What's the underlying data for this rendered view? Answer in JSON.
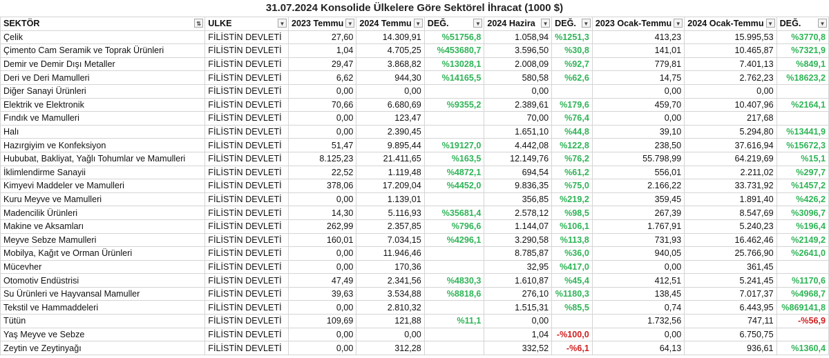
{
  "title": "31.07.2024 Konsolide Ülkelere Göre Sektörel İhracat  (1000 $)",
  "headers": [
    "SEKTÖR",
    "ULKE",
    "2023 Temmu",
    "2024 Temmu",
    "DEĞ.",
    "2024 Hazira",
    "DEĞ.",
    "2023 Ocak-Temmu",
    "2024 Ocak-Temmu",
    "DEĞ."
  ],
  "header_icons": [
    "sort-filter-icon",
    "dropdown-icon",
    "dropdown-icon",
    "dropdown-icon",
    "dropdown-icon",
    "dropdown-icon",
    "dropdown-icon",
    "dropdown-icon",
    "dropdown-icon",
    "dropdown-icon"
  ],
  "colors": {
    "positive": "#2fb457",
    "negative": "#d11f1f"
  },
  "rows": [
    [
      "Çelik",
      "FİLİSTİN DEVLETİ",
      "27,60",
      "14.309,91",
      "%51756,8",
      "1.058,94",
      "%1251,3",
      "413,23",
      "15.995,53",
      "%3770,8"
    ],
    [
      "Çimento Cam Seramik ve Toprak Ürünleri",
      "FİLİSTİN DEVLETİ",
      "1,04",
      "4.705,25",
      "%453680,7",
      "3.596,50",
      "%30,8",
      "141,01",
      "10.465,87",
      "%7321,9"
    ],
    [
      "Demir ve Demir Dışı Metaller",
      "FİLİSTİN DEVLETİ",
      "29,47",
      "3.868,82",
      "%13028,1",
      "2.008,09",
      "%92,7",
      "779,81",
      "7.401,13",
      "%849,1"
    ],
    [
      "Deri ve Deri Mamulleri",
      "FİLİSTİN DEVLETİ",
      "6,62",
      "944,30",
      "%14165,5",
      "580,58",
      "%62,6",
      "14,75",
      "2.762,23",
      "%18623,2"
    ],
    [
      "Diğer Sanayi Ürünleri",
      "FİLİSTİN DEVLETİ",
      "0,00",
      "0,00",
      "",
      "0,00",
      "",
      "0,00",
      "0,00",
      ""
    ],
    [
      "Elektrik ve Elektronik",
      "FİLİSTİN DEVLETİ",
      "70,66",
      "6.680,69",
      "%9355,2",
      "2.389,61",
      "%179,6",
      "459,70",
      "10.407,96",
      "%2164,1"
    ],
    [
      "Fındık ve Mamulleri",
      "FİLİSTİN DEVLETİ",
      "0,00",
      "123,47",
      "",
      "70,00",
      "%76,4",
      "0,00",
      "217,68",
      ""
    ],
    [
      "Halı",
      "FİLİSTİN DEVLETİ",
      "0,00",
      "2.390,45",
      "",
      "1.651,10",
      "%44,8",
      "39,10",
      "5.294,80",
      "%13441,9"
    ],
    [
      "Hazırgiyim ve Konfeksiyon",
      "FİLİSTİN DEVLETİ",
      "51,47",
      "9.895,44",
      "%19127,0",
      "4.442,08",
      "%122,8",
      "238,50",
      "37.616,94",
      "%15672,3"
    ],
    [
      "Hububat, Bakliyat, Yağlı Tohumlar ve Mamulleri",
      "FİLİSTİN DEVLETİ",
      "8.125,23",
      "21.411,65",
      "%163,5",
      "12.149,76",
      "%76,2",
      "55.798,99",
      "64.219,69",
      "%15,1"
    ],
    [
      "İklimlendirme Sanayii",
      "FİLİSTİN DEVLETİ",
      "22,52",
      "1.119,48",
      "%4872,1",
      "694,54",
      "%61,2",
      "556,01",
      "2.211,02",
      "%297,7"
    ],
    [
      "Kimyevi Maddeler ve Mamulleri",
      "FİLİSTİN DEVLETİ",
      "378,06",
      "17.209,04",
      "%4452,0",
      "9.836,35",
      "%75,0",
      "2.166,22",
      "33.731,92",
      "%1457,2"
    ],
    [
      "Kuru Meyve ve Mamulleri",
      "FİLİSTİN DEVLETİ",
      "0,00",
      "1.139,01",
      "",
      "356,85",
      "%219,2",
      "359,45",
      "1.891,40",
      "%426,2"
    ],
    [
      "Madencilik Ürünleri",
      "FİLİSTİN DEVLETİ",
      "14,30",
      "5.116,93",
      "%35681,4",
      "2.578,12",
      "%98,5",
      "267,39",
      "8.547,69",
      "%3096,7"
    ],
    [
      "Makine ve Aksamları",
      "FİLİSTİN DEVLETİ",
      "262,99",
      "2.357,85",
      "%796,6",
      "1.144,07",
      "%106,1",
      "1.767,91",
      "5.240,23",
      "%196,4"
    ],
    [
      "Meyve Sebze Mamulleri",
      "FİLİSTİN DEVLETİ",
      "160,01",
      "7.034,15",
      "%4296,1",
      "3.290,58",
      "%113,8",
      "731,93",
      "16.462,46",
      "%2149,2"
    ],
    [
      "Mobilya, Kağıt ve Orman Ürünleri",
      "FİLİSTİN DEVLETİ",
      "0,00",
      "11.946,46",
      "",
      "8.785,87",
      "%36,0",
      "940,05",
      "25.766,90",
      "%2641,0"
    ],
    [
      "Mücevher",
      "FİLİSTİN DEVLETİ",
      "0,00",
      "170,36",
      "",
      "32,95",
      "%417,0",
      "0,00",
      "361,45",
      ""
    ],
    [
      "Otomotiv Endüstrisi",
      "FİLİSTİN DEVLETİ",
      "47,49",
      "2.341,56",
      "%4830,3",
      "1.610,87",
      "%45,4",
      "412,51",
      "5.241,45",
      "%1170,6"
    ],
    [
      "Su Ürünleri ve Hayvansal Mamuller",
      "FİLİSTİN DEVLETİ",
      "39,63",
      "3.534,88",
      "%8818,6",
      "276,10",
      "%1180,3",
      "138,45",
      "7.017,37",
      "%4968,7"
    ],
    [
      "Tekstil ve Hammaddeleri",
      "FİLİSTİN DEVLETİ",
      "0,00",
      "2.810,32",
      "",
      "1.515,31",
      "%85,5",
      "0,74",
      "6.443,95",
      "%869141,8"
    ],
    [
      "Tütün",
      "FİLİSTİN DEVLETİ",
      "109,69",
      "121,88",
      "%11,1",
      "0,00",
      "",
      "1.732,56",
      "747,11",
      "-%56,9"
    ],
    [
      "Yaş Meyve ve Sebze",
      "FİLİSTİN DEVLETİ",
      "0,00",
      "0,00",
      "",
      "1,04",
      "-%100,0",
      "0,00",
      "6.750,75",
      ""
    ],
    [
      "Zeytin ve Zeytinyağı",
      "FİLİSTİN DEVLETİ",
      "0,00",
      "312,28",
      "",
      "332,52",
      "-%6,1",
      "64,13",
      "936,61",
      "%1360,4"
    ]
  ]
}
